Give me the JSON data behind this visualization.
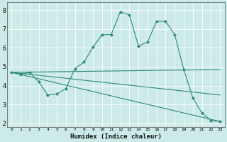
{
  "title": "",
  "xlabel": "Humidex (Indice chaleur)",
  "ylabel": "",
  "bg_color": "#cceae7",
  "line_color": "#2e8b7a",
  "grid_color": "#ffffff",
  "xlim": [
    -0.5,
    23.5
  ],
  "ylim": [
    1.8,
    8.4
  ],
  "xticks": [
    0,
    1,
    2,
    3,
    4,
    5,
    6,
    7,
    8,
    9,
    10,
    11,
    12,
    13,
    14,
    15,
    16,
    17,
    18,
    19,
    20,
    21,
    22,
    23
  ],
  "yticks": [
    2,
    3,
    4,
    5,
    6,
    7,
    8
  ],
  "series": [
    {
      "x": [
        0,
        1,
        2,
        3,
        4,
        5,
        6,
        7,
        8,
        9,
        10,
        11,
        12,
        13,
        14,
        15,
        16,
        17,
        18,
        19,
        20,
        21,
        22,
        23
      ],
      "y": [
        4.7,
        4.6,
        4.7,
        4.2,
        3.5,
        3.55,
        3.85,
        4.9,
        5.25,
        6.05,
        6.7,
        6.7,
        7.9,
        7.75,
        6.1,
        6.3,
        7.4,
        7.4,
        6.7,
        4.85,
        3.35,
        2.55,
        2.15,
        2.1
      ],
      "marker": "D",
      "markersize": 2.0,
      "linewidth": 0.8,
      "with_marker": true
    },
    {
      "x": [
        0,
        23
      ],
      "y": [
        4.7,
        4.85
      ],
      "marker": null,
      "markersize": 0,
      "linewidth": 0.8,
      "with_marker": false
    },
    {
      "x": [
        0,
        23
      ],
      "y": [
        4.7,
        3.5
      ],
      "marker": null,
      "markersize": 0,
      "linewidth": 0.8,
      "with_marker": false
    },
    {
      "x": [
        0,
        23
      ],
      "y": [
        4.7,
        2.1
      ],
      "marker": null,
      "markersize": 0,
      "linewidth": 0.8,
      "with_marker": false
    }
  ]
}
